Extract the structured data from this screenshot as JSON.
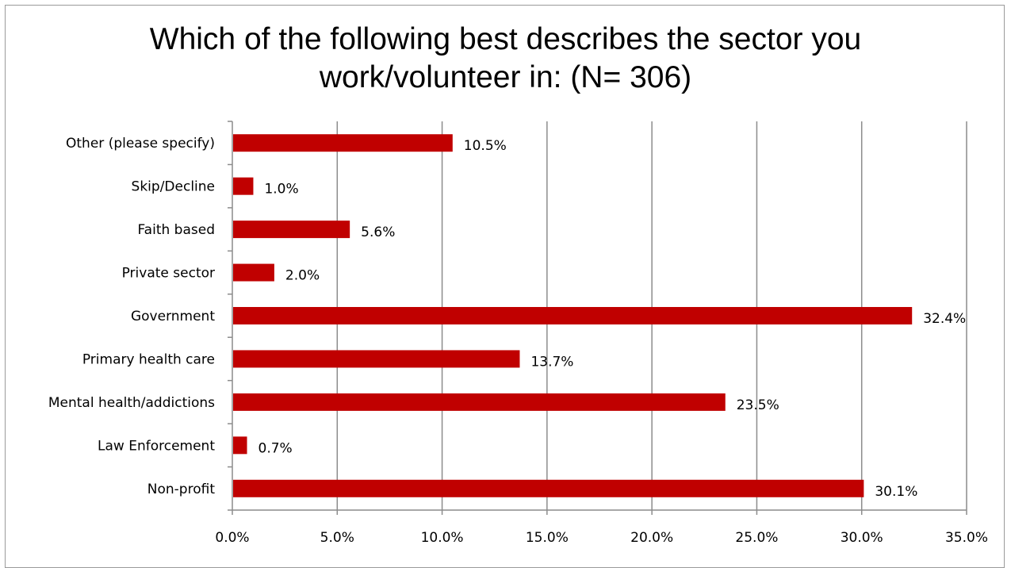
{
  "chart_data": {
    "type": "bar",
    "orientation": "horizontal",
    "title_lines": [
      "Which of the following best describes the sector you",
      "work/volunteer in: (N= 306)"
    ],
    "categories": [
      "Other (please specify)",
      "Skip/Decline",
      "Faith based",
      "Private sector",
      "Government",
      "Primary health care",
      "Mental health/addictions",
      "Law Enforcement",
      "Non-profit"
    ],
    "values": [
      10.5,
      1.0,
      5.6,
      2.0,
      32.4,
      13.7,
      23.5,
      0.7,
      30.1
    ],
    "value_labels": [
      "10.5%",
      "1.0%",
      "5.6%",
      "2.0%",
      "32.4%",
      "13.7%",
      "23.5%",
      "0.7%",
      "30.1%"
    ],
    "xlim": [
      0,
      35
    ],
    "x_ticks": [
      0,
      5,
      10,
      15,
      20,
      25,
      30,
      35
    ],
    "x_tick_labels": [
      "0.0%",
      "5.0%",
      "10.0%",
      "15.0%",
      "20.0%",
      "25.0%",
      "30.0%",
      "35.0%"
    ],
    "bar_color": "#c00000",
    "gridlines": "vertical",
    "grid_color": "#8c8c8c",
    "legend": "none"
  }
}
